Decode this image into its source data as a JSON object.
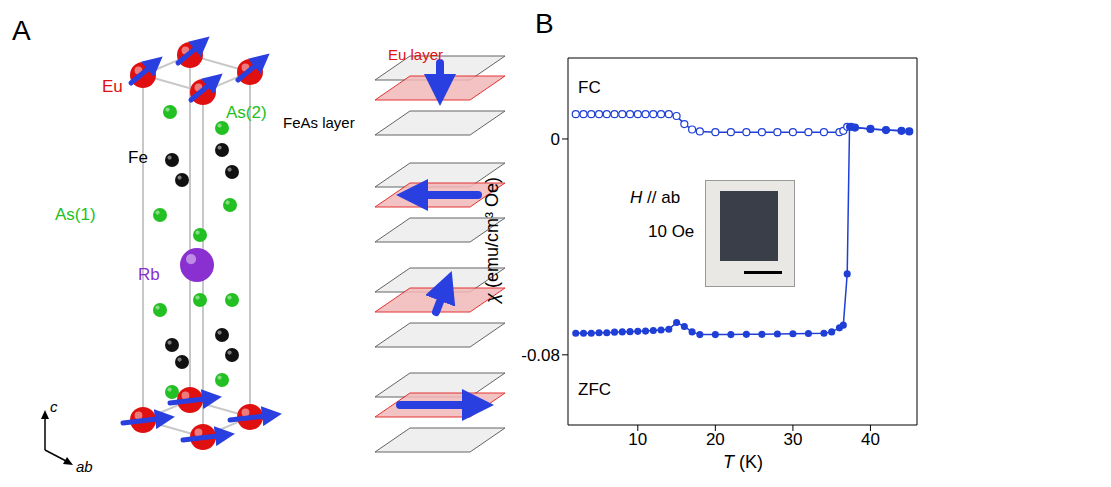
{
  "diagram": {
    "letter": "A",
    "atom_labels": {
      "eu": "Eu",
      "as2": "As(2)",
      "fe": "Fe",
      "as1": "As(1)",
      "rb": "Rb"
    },
    "axis_labels": {
      "c": "c",
      "ab": "ab"
    },
    "layer_labels": {
      "eu": "Eu layer",
      "feas": "FeAs layer"
    }
  },
  "chart_data": {
    "letter": "B",
    "type": "line",
    "x_label": "T (K)",
    "y_label": "χ (emu/cm³ Oe)",
    "annotations": [
      "H // ab",
      "10 Oe"
    ],
    "xlim": [
      1,
      46
    ],
    "xticks": [
      10,
      20,
      30,
      40
    ],
    "ylim": [
      -0.106,
      0.03
    ],
    "yticks": [
      -0.08,
      0
    ],
    "series": [
      {
        "name": "FC",
        "color": "#1f3fd6",
        "marker": "open_circle",
        "x": [
          2,
          3,
          4,
          5,
          6,
          7,
          8,
          9,
          10,
          11,
          12,
          13,
          14,
          15,
          16,
          17,
          18,
          20,
          22,
          24,
          26,
          28,
          30,
          32,
          34,
          36,
          36.5,
          37,
          37.5,
          38,
          40,
          42,
          44,
          45
        ],
        "values": [
          0.0092,
          0.0092,
          0.0092,
          0.0092,
          0.0092,
          0.0092,
          0.0092,
          0.0092,
          0.0092,
          0.0092,
          0.0092,
          0.0092,
          0.0092,
          0.0085,
          0.0055,
          0.0035,
          0.0028,
          0.0025,
          0.0025,
          0.0025,
          0.0025,
          0.0025,
          0.0025,
          0.0025,
          0.0025,
          0.0025,
          0.003,
          0.0045,
          0.0045,
          0.0042,
          0.0037,
          0.0033,
          0.003,
          0.0028
        ]
      },
      {
        "name": "ZFC",
        "color": "#1f3fd6",
        "marker": "filled_circle",
        "x": [
          2,
          3,
          4,
          5,
          6,
          7,
          8,
          9,
          10,
          11,
          12,
          13,
          14,
          15,
          16,
          17,
          18,
          20,
          22,
          24,
          26,
          28,
          30,
          32,
          34,
          35,
          36,
          36.5,
          37,
          37.3,
          38,
          40,
          42,
          44,
          45
        ],
        "values": [
          -0.072,
          -0.072,
          -0.072,
          -0.0718,
          -0.0718,
          -0.0716,
          -0.0715,
          -0.0714,
          -0.0713,
          -0.0712,
          -0.071,
          -0.0708,
          -0.0705,
          -0.068,
          -0.0695,
          -0.0715,
          -0.0725,
          -0.0725,
          -0.0725,
          -0.0724,
          -0.0724,
          -0.0723,
          -0.0722,
          -0.0721,
          -0.072,
          -0.0715,
          -0.07,
          -0.069,
          -0.05,
          0.0045,
          0.0042,
          0.0037,
          0.0033,
          0.003,
          0.0028
        ]
      }
    ]
  }
}
